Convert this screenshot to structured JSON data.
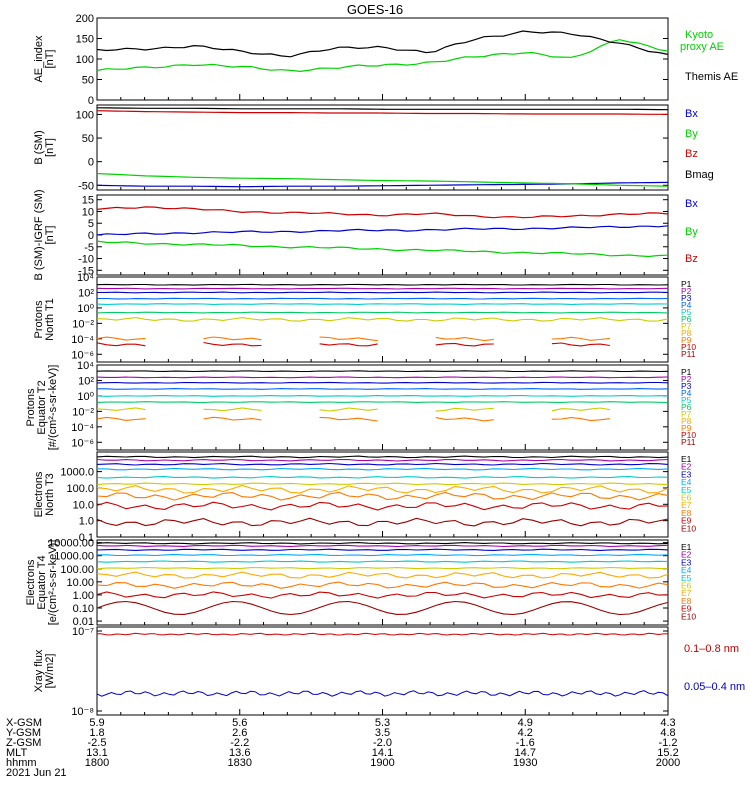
{
  "title": "GOES-16",
  "colors": {
    "black": "#000000",
    "green": "#00d200",
    "blue": "#0000cc",
    "red": "#cc0000",
    "p": [
      "#000000",
      "#aa00aa",
      "#0000cc",
      "#0066ff",
      "#00cccc",
      "#00cc66",
      "#cccc00",
      "#ffaa00",
      "#ff7700",
      "#cc0000",
      "#990000"
    ],
    "e": [
      "#000000",
      "#aa00aa",
      "#0000cc",
      "#00aaff",
      "#00cccc",
      "#cccc00",
      "#ffaa00",
      "#ff7700",
      "#cc0000",
      "#990000"
    ]
  },
  "chart_data": [
    {
      "id": "ae",
      "type": "line",
      "ylabel": [
        "AE_index",
        "[nT]"
      ],
      "ylim": [
        0,
        200
      ],
      "yticks": [
        "0",
        "50",
        "100",
        "150",
        "200"
      ],
      "series": [
        {
          "name": "Kyoto proxy AE",
          "color_key": "green",
          "x": [
            "1800",
            "1810",
            "1820",
            "1830",
            "1840",
            "1850",
            "1900",
            "1910",
            "1920",
            "1930",
            "1940",
            "1950",
            "2000"
          ],
          "values": [
            72,
            78,
            88,
            80,
            72,
            78,
            85,
            92,
            105,
            118,
            100,
            150,
            120
          ]
        },
        {
          "name": "Themis AE",
          "color_key": "black",
          "x": [
            "1800",
            "1810",
            "1820",
            "1830",
            "1840",
            "1850",
            "1900",
            "1910",
            "1920",
            "1930",
            "1940",
            "1950",
            "2000"
          ],
          "values": [
            120,
            125,
            132,
            118,
            108,
            125,
            130,
            115,
            150,
            168,
            160,
            140,
            108
          ]
        }
      ]
    },
    {
      "id": "bsm",
      "type": "line",
      "ylabel": [
        "B (SM)",
        "[nT]"
      ],
      "ylim": [
        -60,
        120
      ],
      "yticks": [
        "-50",
        "0",
        "50",
        "100"
      ],
      "series": [
        {
          "name": "Bx",
          "color_key": "blue",
          "values": [
            -50,
            -52,
            -52,
            -53,
            -52,
            -52,
            -51,
            -50,
            -49,
            -48,
            -47,
            -45,
            -44
          ]
        },
        {
          "name": "By",
          "color_key": "green",
          "values": [
            -25,
            -30,
            -33,
            -35,
            -36,
            -38,
            -40,
            -41,
            -43,
            -45,
            -47,
            -50,
            -52
          ]
        },
        {
          "name": "Bz",
          "color_key": "red",
          "values": [
            108,
            106,
            105,
            104,
            104,
            103,
            103,
            102,
            102,
            101,
            101,
            101,
            100
          ]
        },
        {
          "name": "Bmag",
          "color_key": "black",
          "values": [
            114,
            113,
            113,
            112,
            112,
            112,
            111,
            111,
            111,
            111,
            111,
            111,
            110
          ]
        }
      ]
    },
    {
      "id": "bigrf",
      "type": "line",
      "ylabel": [
        "B (SM)-IGRF (SM)",
        "[nT]"
      ],
      "ylim": [
        -17,
        17
      ],
      "yticks": [
        "-15",
        "-10",
        "-5",
        "0",
        "5",
        "10",
        "15"
      ],
      "series": [
        {
          "name": "Bx",
          "color_key": "blue",
          "values": [
            0,
            0.5,
            1,
            1.2,
            1.5,
            1.8,
            2,
            2.2,
            2.5,
            2.8,
            3,
            3.5,
            4
          ]
        },
        {
          "name": "By",
          "color_key": "green",
          "values": [
            -3,
            -3.5,
            -4,
            -4.5,
            -5,
            -5.5,
            -6,
            -6.5,
            -7,
            -7.5,
            -8,
            -8.5,
            -9
          ]
        },
        {
          "name": "Bz",
          "color_key": "red",
          "values": [
            11,
            12,
            11,
            10,
            9.5,
            9,
            8.5,
            9,
            8,
            7.5,
            8,
            9,
            9
          ]
        }
      ]
    },
    {
      "id": "pn",
      "type": "line",
      "scale": "log",
      "ylabel": [
        "Protons",
        "North T1"
      ],
      "ylim": [
        -7,
        4
      ],
      "yticks": [
        "10⁻⁶",
        "10⁻⁴",
        "10⁻²",
        "10⁰",
        "10²",
        "10⁴"
      ],
      "legend": [
        "P1",
        "P2",
        "P3",
        "P4",
        "P5",
        "P6",
        "P7",
        "P8",
        "P9",
        "P10",
        "P11"
      ],
      "levels": [
        3.0,
        2.5,
        2.0,
        1.2,
        0.5,
        -0.6,
        -1.5,
        null,
        -4.0,
        -4.7,
        null
      ]
    },
    {
      "id": "pe",
      "type": "line",
      "scale": "log",
      "ylabel": [
        "Protons",
        "Equator T2",
        "[#/(cm²-s-sr-keV)]"
      ],
      "ylim": [
        -7,
        4
      ],
      "yticks": [
        "10⁻⁶",
        "10⁻⁴",
        "10⁻²",
        "10⁰",
        "10²",
        "10⁴"
      ],
      "legend": [
        "P1",
        "P2",
        "P3",
        "P4",
        "P5",
        "P6",
        "P7",
        "P8",
        "P9",
        "P10",
        "P11"
      ],
      "levels": [
        3.2,
        2.4,
        1.7,
        0.9,
        0.0,
        -0.8,
        -1.8,
        null,
        -3.0,
        null,
        null
      ]
    },
    {
      "id": "en",
      "type": "line",
      "scale": "log",
      "ylabel": [
        "Electrons",
        "North T3"
      ],
      "ylim": [
        -1,
        4.2
      ],
      "yticks": [
        "0.1",
        "1.0",
        "10.0",
        "100.0",
        "1000.0"
      ],
      "legend": [
        "E1",
        "E2",
        "E3",
        "E4",
        "E5",
        "E6",
        "E7",
        "E8",
        "E9",
        "E10"
      ],
      "levels": [
        3.9,
        3.7,
        3.45,
        3.15,
        2.65,
        2.25,
        1.9,
        1.5,
        0.9,
        -0.1
      ]
    },
    {
      "id": "ee",
      "type": "line",
      "scale": "log",
      "ylabel": [
        "Electrons",
        "Equator T4",
        "[e/(cm²-s-sr-keV)]"
      ],
      "ylim": [
        -2.3,
        4.2
      ],
      "yticks": [
        "0.01",
        "0.10",
        "1.00",
        "10.00",
        "100.00",
        "1000.00",
        "10000.00"
      ],
      "legend": [
        "E1",
        "E2",
        "E3",
        "E4",
        "E5",
        "E6",
        "E7",
        "E8",
        "E9",
        "E10"
      ],
      "levels": [
        3.95,
        3.75,
        3.45,
        3.05,
        2.55,
        2.05,
        1.5,
        0.75,
        0.0,
        -1.0
      ]
    },
    {
      "id": "xray",
      "type": "line",
      "scale": "log",
      "ylabel": [
        "Xray flux",
        "[W/m2]"
      ],
      "ylim": [
        -8.05,
        -6.95
      ],
      "yticks": [
        "10⁻⁸",
        "10⁻⁷"
      ],
      "series": [
        {
          "name": "0.1–0.8 nm",
          "color_key": "red",
          "level": -7.04
        },
        {
          "name": "0.05–0.4 nm",
          "color_key": "blue",
          "level": -7.78
        }
      ]
    }
  ],
  "ephemeris": {
    "labels": [
      "X-GSM",
      "Y-GSM",
      "Z-GSM",
      "MLT",
      "hhmm"
    ],
    "columns": [
      [
        "5.9",
        "1.8",
        "-2.5",
        "13.1",
        "1800"
      ],
      [
        "5.6",
        "2.6",
        "-2.2",
        "13.6",
        "1830"
      ],
      [
        "5.3",
        "3.5",
        "-2.0",
        "14.1",
        "1900"
      ],
      [
        "4.9",
        "4.2",
        "-1.6",
        "14.7",
        "1930"
      ],
      [
        "4.3",
        "4.8",
        "-1.2",
        "15.2",
        "2000"
      ]
    ],
    "date": "2021 Jun 21"
  }
}
